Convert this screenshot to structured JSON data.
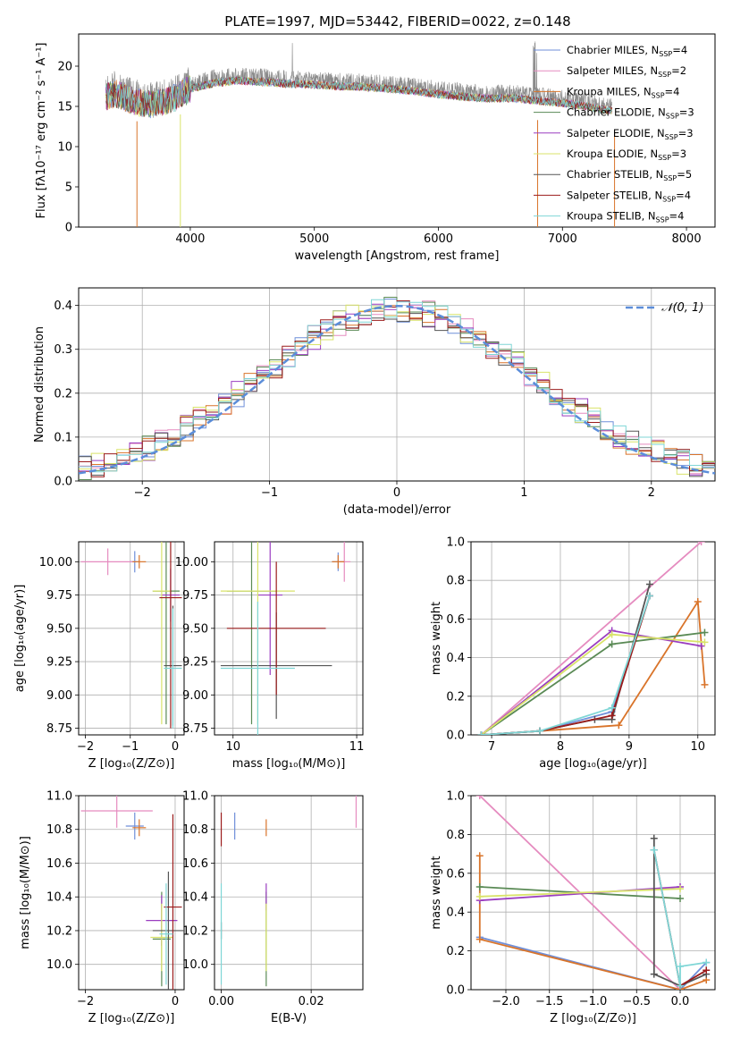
{
  "figure": {
    "title": "PLATE=1997, MJD=53442, FIBERID=0022, z=0.148"
  },
  "colors": {
    "Chabrier MILES": "#6f8fd9",
    "Salpeter MILES": "#e58bbf",
    "Kroupa MILES": "#d9742a",
    "Chabrier ELODIE": "#5a8a55",
    "Salpeter ELODIE": "#9a3dc0",
    "Kroupa ELODIE": "#d9e36a",
    "Chabrier STELIB": "#555555",
    "Salpeter STELIB": "#9b1c1c",
    "Kroupa STELIB": "#7fd6d6",
    "data": "#8a8a8a",
    "gauss": "#5b8dd9"
  },
  "chart_data": [
    {
      "id": "spectrum",
      "type": "line",
      "title": "PLATE=1997, MJD=53442, FIBERID=0022, z=0.148",
      "xlabel": "wavelength [Angstrom, rest frame]",
      "ylabel": "Flux [fλ10⁻¹⁷ erg cm⁻² s⁻¹ A⁻¹]",
      "xlim": [
        3100,
        8230
      ],
      "ylim": [
        0,
        24
      ],
      "xticks": [
        4000,
        5000,
        6000,
        7000,
        8000
      ],
      "yticks": [
        0,
        5,
        10,
        15,
        20
      ],
      "grid": false,
      "legend_position": "top-right",
      "series": [
        {
          "name": "Chabrier MILES, N_SSP=4"
        },
        {
          "name": "Salpeter MILES, N_SSP=2"
        },
        {
          "name": "Kroupa MILES, N_SSP=4"
        },
        {
          "name": "Chabrier ELODIE, N_SSP=3"
        },
        {
          "name": "Salpeter ELODIE, N_SSP=3"
        },
        {
          "name": "Kroupa ELODIE, N_SSP=3"
        },
        {
          "name": "Chabrier STELIB, N_SSP=5"
        },
        {
          "name": "Salpeter STELIB, N_SSP=4"
        },
        {
          "name": "Kroupa STELIB, N_SSP=4"
        }
      ],
      "data_envelope": [
        [
          3320,
          16.8
        ],
        [
          3400,
          17.2
        ],
        [
          3500,
          16.5
        ],
        [
          3600,
          16.0
        ],
        [
          3700,
          15.8
        ],
        [
          3800,
          16.2
        ],
        [
          3900,
          16.8
        ],
        [
          4000,
          17.8
        ],
        [
          4200,
          18.5
        ],
        [
          4400,
          18.8
        ],
        [
          4600,
          18.6
        ],
        [
          4800,
          18.4
        ],
        [
          5000,
          18.3
        ],
        [
          5200,
          18.1
        ],
        [
          5400,
          18.0
        ],
        [
          5600,
          17.8
        ],
        [
          5800,
          17.5
        ],
        [
          6000,
          17.1
        ],
        [
          6200,
          16.8
        ],
        [
          6400,
          16.6
        ],
        [
          6600,
          16.6
        ],
        [
          6800,
          16.3
        ],
        [
          7000,
          16.0
        ],
        [
          7200,
          15.6
        ],
        [
          7400,
          15.0
        ]
      ]
    },
    {
      "id": "residuals",
      "type": "bar",
      "xlabel": "(data-model)/error",
      "ylabel": "Normed distribution",
      "xlim": [
        -2.5,
        2.5
      ],
      "ylim": [
        0,
        0.44
      ],
      "xticks": [
        -2,
        -1,
        0,
        1,
        2
      ],
      "yticks": [
        0.0,
        0.1,
        0.2,
        0.3,
        0.4
      ],
      "grid": true,
      "legend_position": "top-right",
      "legend": [
        "𝒩(0, 1)"
      ],
      "bin_width": 0.1,
      "bins_from": -2.5
    },
    {
      "id": "age_vs_Z",
      "type": "scatter",
      "xlabel": "Z [log₁₀(Z/Z⊙)]",
      "ylabel": "age  [log₁₀(age/yr)]",
      "xlim": [
        -2.15,
        0.2
      ],
      "ylim": [
        8.7,
        10.15
      ],
      "xticks": [
        -2,
        -1,
        0
      ],
      "yticks": [
        8.75,
        9.0,
        9.25,
        9.5,
        9.75,
        10.0
      ],
      "grid": true,
      "points": [
        {
          "series": "Chabrier MILES",
          "x": -0.9,
          "y": 10.0,
          "xerr": 0.1,
          "yerr": 0.08
        },
        {
          "series": "Salpeter MILES",
          "x": -1.5,
          "y": 10.0,
          "xerr": 0.6,
          "yerr": 0.1
        },
        {
          "series": "Kroupa MILES",
          "x": -0.8,
          "y": 10.0,
          "xerr": 0.15,
          "yerr": 0.05
        },
        {
          "series": "Chabrier ELODIE",
          "x": -0.2,
          "y": 9.78,
          "xerr": 0.3,
          "yerr": 1.0
        },
        {
          "series": "Salpeter ELODIE",
          "x": -0.1,
          "y": 9.75,
          "xerr": 0.2,
          "yerr": 0.2
        },
        {
          "series": "Kroupa ELODIE",
          "x": -0.3,
          "y": 9.78,
          "xerr": 0.2,
          "yerr": 1.0
        },
        {
          "series": "Chabrier STELIB",
          "x": -0.05,
          "y": 9.22,
          "xerr": 0.2,
          "yerr": 0.45
        },
        {
          "series": "Salpeter STELIB",
          "x": -0.1,
          "y": 9.73,
          "xerr": 0.25,
          "yerr": 0.98
        },
        {
          "series": "Kroupa STELIB",
          "x": -0.05,
          "y": 9.2,
          "xerr": 0.2,
          "yerr": 0.45
        }
      ]
    },
    {
      "id": "age_vs_mass",
      "type": "scatter",
      "xlabel": "mass [log₁₀(M/M⊙)]",
      "ylabel": "",
      "xlim": [
        9.85,
        11.05
      ],
      "ylim": [
        8.7,
        10.15
      ],
      "xticks": [
        10,
        11
      ],
      "yticks": [
        8.75,
        9.0,
        9.25,
        9.5,
        9.75,
        10.0
      ],
      "grid": true,
      "points": [
        {
          "series": "Chabrier MILES",
          "x": 10.85,
          "y": 10.0,
          "xerr": 0.05,
          "yerr": 0.07
        },
        {
          "series": "Salpeter MILES",
          "x": 10.9,
          "y": 10.0,
          "xerr": 0.05,
          "yerr": 0.15
        },
        {
          "series": "Kroupa MILES",
          "x": 10.85,
          "y": 10.0,
          "xerr": 0.05,
          "yerr": 0.05
        },
        {
          "series": "Chabrier ELODIE",
          "x": 10.15,
          "y": 9.78,
          "xerr": 0.2,
          "yerr": 1.0
        },
        {
          "series": "Salpeter ELODIE",
          "x": 10.3,
          "y": 9.75,
          "xerr": 0.1,
          "yerr": 0.6
        },
        {
          "series": "Kroupa ELODIE",
          "x": 10.2,
          "y": 9.78,
          "xerr": 0.3,
          "yerr": 1.0
        },
        {
          "series": "Chabrier STELIB",
          "x": 10.35,
          "y": 9.22,
          "xerr": 0.45,
          "yerr": 0.4
        },
        {
          "series": "Salpeter STELIB",
          "x": 10.35,
          "y": 9.5,
          "xerr": 0.4,
          "yerr": 0.5
        },
        {
          "series": "Kroupa STELIB",
          "x": 10.2,
          "y": 9.2,
          "xerr": 0.3,
          "yerr": 0.5
        }
      ]
    },
    {
      "id": "weight_vs_age",
      "type": "line",
      "xlabel": "age  [log₁₀(age/yr)]",
      "ylabel": "mass weight",
      "xlim": [
        6.7,
        10.25
      ],
      "ylim": [
        0,
        1.0
      ],
      "xticks": [
        7,
        8,
        9,
        10
      ],
      "yticks": [
        0.0,
        0.2,
        0.4,
        0.6,
        0.8,
        1.0
      ],
      "grid": true,
      "series": [
        {
          "name": "Chabrier MILES",
          "x": [
            6.85,
            7.7,
            8.75,
            9.3
          ],
          "y": [
            0.0,
            0.02,
            0.12,
            0.72
          ]
        },
        {
          "name": "Salpeter MILES",
          "x": [
            6.85,
            10.05
          ],
          "y": [
            0.0,
            1.0
          ]
        },
        {
          "name": "Kroupa MILES",
          "x": [
            6.85,
            7.7,
            8.85,
            10.0,
            10.1
          ],
          "y": [
            0.0,
            0.02,
            0.05,
            0.69,
            0.26
          ]
        },
        {
          "name": "Chabrier ELODIE",
          "x": [
            6.85,
            8.75,
            10.1
          ],
          "y": [
            0.0,
            0.47,
            0.53
          ]
        },
        {
          "name": "Salpeter ELODIE",
          "x": [
            6.85,
            8.75,
            10.05
          ],
          "y": [
            0.0,
            0.54,
            0.46
          ]
        },
        {
          "name": "Kroupa ELODIE",
          "x": [
            6.85,
            8.75,
            10.1
          ],
          "y": [
            0.0,
            0.52,
            0.48
          ]
        },
        {
          "name": "Chabrier STELIB",
          "x": [
            6.85,
            7.7,
            8.5,
            8.75,
            9.3
          ],
          "y": [
            0.0,
            0.02,
            0.08,
            0.08,
            0.78
          ]
        },
        {
          "name": "Salpeter STELIB",
          "x": [
            6.85,
            7.7,
            8.75,
            9.3
          ],
          "y": [
            0.0,
            0.02,
            0.1,
            0.72
          ]
        },
        {
          "name": "Kroupa STELIB",
          "x": [
            6.85,
            7.7,
            8.75,
            9.3
          ],
          "y": [
            0.0,
            0.02,
            0.14,
            0.72
          ]
        }
      ]
    },
    {
      "id": "mass_vs_Z",
      "type": "scatter",
      "xlabel": "Z [log₁₀(Z/Z⊙)]",
      "ylabel": "mass [log₁₀(M/M⊙)]",
      "xlim": [
        -2.15,
        0.2
      ],
      "ylim": [
        9.85,
        11.0
      ],
      "xticks": [
        -2,
        0
      ],
      "yticks": [
        10.0,
        10.2,
        10.4,
        10.6,
        10.8,
        11.0
      ],
      "grid": true,
      "points": [
        {
          "series": "Chabrier MILES",
          "x": -0.9,
          "y": 10.82,
          "xerr": 0.2,
          "yerr": 0.08
        },
        {
          "series": "Salpeter MILES",
          "x": -1.3,
          "y": 10.91,
          "xerr": 0.8,
          "yerr": 0.1
        },
        {
          "series": "Kroupa MILES",
          "x": -0.8,
          "y": 10.81,
          "xerr": 0.15,
          "yerr": 0.05
        },
        {
          "series": "Chabrier ELODIE",
          "x": -0.3,
          "y": 10.15,
          "xerr": 0.2,
          "yerr": 0.28
        },
        {
          "series": "Salpeter ELODIE",
          "x": -0.3,
          "y": 10.26,
          "xerr": 0.35,
          "yerr": 0.15
        },
        {
          "series": "Kroupa ELODIE",
          "x": -0.3,
          "y": 10.16,
          "xerr": 0.25,
          "yerr": 0.2
        },
        {
          "series": "Chabrier STELIB",
          "x": -0.15,
          "y": 10.2,
          "xerr": 0.35,
          "yerr": 0.35
        },
        {
          "series": "Salpeter STELIB",
          "x": -0.05,
          "y": 10.34,
          "xerr": 0.2,
          "yerr": 0.55
        },
        {
          "series": "Kroupa STELIB",
          "x": -0.2,
          "y": 10.18,
          "xerr": 0.15,
          "yerr": 0.3
        }
      ]
    },
    {
      "id": "mass_vs_ebv",
      "type": "scatter",
      "xlabel": "E(B-V)",
      "ylabel": "",
      "xlim": [
        -0.0015,
        0.0315
      ],
      "ylim": [
        9.85,
        11.0
      ],
      "xticks": [
        0.0,
        0.02
      ],
      "yticks": [
        10.0,
        10.2,
        10.4,
        10.6,
        10.8,
        11.0
      ],
      "grid": true,
      "points": [
        {
          "series": "Chabrier MILES",
          "x": 0.003,
          "y": 10.82,
          "xerr": 0,
          "yerr": 0.08
        },
        {
          "series": "Salpeter MILES",
          "x": 0.03,
          "y": 10.91,
          "xerr": 0,
          "yerr": 0.1
        },
        {
          "series": "Kroupa MILES",
          "x": 0.01,
          "y": 10.81,
          "xerr": 0,
          "yerr": 0.05
        },
        {
          "series": "Chabrier ELODIE",
          "x": 0.01,
          "y": 10.15,
          "xerr": 0,
          "yerr": 0.28
        },
        {
          "series": "Salpeter ELODIE",
          "x": 0.01,
          "y": 10.4,
          "xerr": 0,
          "yerr": 0.08
        },
        {
          "series": "Kroupa ELODIE",
          "x": 0.01,
          "y": 10.16,
          "xerr": 0,
          "yerr": 0.2
        },
        {
          "series": "Chabrier STELIB",
          "x": 0.0,
          "y": 10.2,
          "xerr": 0,
          "yerr": 0.05
        },
        {
          "series": "Salpeter STELIB",
          "x": 0.0,
          "y": 10.8,
          "xerr": 0,
          "yerr": 0.1
        },
        {
          "series": "Kroupa STELIB",
          "x": 0.0,
          "y": 10.18,
          "xerr": 0,
          "yerr": 0.3
        }
      ]
    },
    {
      "id": "weight_vs_Z",
      "type": "line",
      "xlabel": "Z [log₁₀(Z/Z⊙)]",
      "ylabel": "mass weight",
      "xlim": [
        -2.4,
        0.4
      ],
      "ylim": [
        0,
        1.0
      ],
      "xticks": [
        -2.0,
        -1.5,
        -1.0,
        -0.5,
        0.0
      ],
      "yticks": [
        0.0,
        0.2,
        0.4,
        0.6,
        0.8,
        1.0
      ],
      "grid": true,
      "series": [
        {
          "name": "Chabrier MILES",
          "x": [
            -2.3,
            0.0,
            0.3
          ],
          "y": [
            0.27,
            0.0,
            0.14
          ]
        },
        {
          "name": "Salpeter MILES",
          "x": [
            -2.3,
            0.0
          ],
          "y": [
            1.0,
            0.0
          ]
        },
        {
          "name": "Kroupa MILES",
          "x": [
            -2.3,
            -2.3,
            0.0,
            0.3
          ],
          "y": [
            0.69,
            0.26,
            0.0,
            0.05
          ]
        },
        {
          "name": "Chabrier ELODIE",
          "x": [
            -2.3,
            0.0
          ],
          "y": [
            0.53,
            0.47
          ]
        },
        {
          "name": "Salpeter ELODIE",
          "x": [
            -2.3,
            0.0
          ],
          "y": [
            0.46,
            0.53
          ]
        },
        {
          "name": "Kroupa ELODIE",
          "x": [
            -2.3,
            0.0
          ],
          "y": [
            0.48,
            0.52
          ]
        },
        {
          "name": "Chabrier STELIB",
          "x": [
            -0.3,
            -0.3,
            0.0,
            0.3
          ],
          "y": [
            0.78,
            0.08,
            0.02,
            0.08
          ]
        },
        {
          "name": "Salpeter STELIB",
          "x": [
            -0.3,
            0.0,
            0.3
          ],
          "y": [
            0.72,
            0.02,
            0.1
          ]
        },
        {
          "name": "Kroupa STELIB",
          "x": [
            -0.3,
            0.0,
            0.0,
            0.3
          ],
          "y": [
            0.72,
            0.02,
            0.12,
            0.14
          ]
        }
      ]
    }
  ]
}
